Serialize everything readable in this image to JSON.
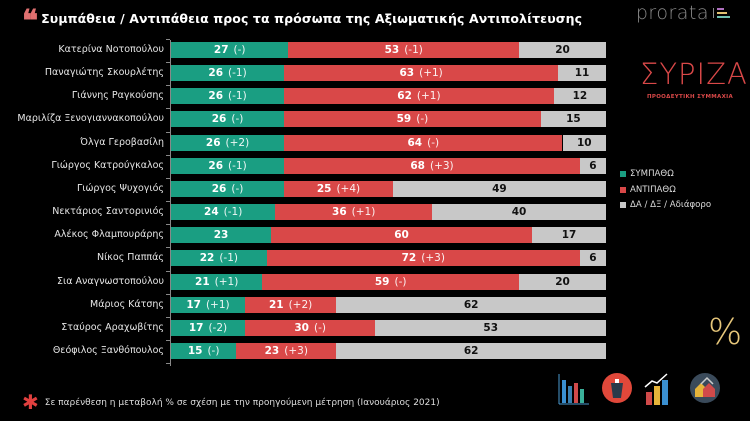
{
  "header": {
    "title": "Συμπάθεια / Αντιπάθεια προς τα πρόσωπα της Αξιωματικής Αντιπολίτευσης",
    "quote_icon": "quote-icon",
    "brand": "prorata",
    "party_name": "ΣΥΡΙΖΑ",
    "party_subtitle": "ΠΡΟΟΔΕΥΤΙΚΗ ΣΥΜΜΑΧΙΑ"
  },
  "colors": {
    "sympatho": "#1a9e82",
    "antipatho": "#d94848",
    "undecided": "#c8c8c8",
    "accent": "#e07070",
    "percent": "#e6c67a"
  },
  "chart_data": {
    "type": "bar",
    "stacked": true,
    "orientation": "horizontal",
    "title": "Συμπάθεια / Αντιπάθεια προς τα πρόσωπα της Αξιωματικής Αντιπολίτευσης",
    "xlabel": "",
    "ylabel": "",
    "xlim": [
      0,
      100
    ],
    "grid": false,
    "legend_position": "right",
    "categories": [
      "Κατερίνα Νοτοπούλου",
      "Παναγιώτης Σκουρλέτης",
      "Γιάννης Ραγκούσης",
      "Μαριλίζα Ξενογιαννακοπούλου",
      "Όλγα Γεροβασίλη",
      "Γιώργος Κατρούγκαλος",
      "Γιώργος Ψυχογιός",
      "Νεκτάριος Σαντορινιός",
      "Αλέκος Φλαμπουράρης",
      "Νίκος Παππάς",
      "Σια Αναγνωστοπούλου",
      "Μάριος Κάτσης",
      "Σταύρος Αραχωβίτης",
      "Θεόφιλος Ξανθόπουλος"
    ],
    "series": [
      {
        "name": "ΣΥΜΠΑΘΩ",
        "values": [
          27,
          26,
          26,
          26,
          26,
          26,
          26,
          24,
          23,
          22,
          21,
          17,
          17,
          15
        ],
        "changes": [
          "(-)",
          "(-1)",
          "(-1)",
          "(-)",
          "(+2)",
          "(-1)",
          "(-)",
          "(-1)",
          "",
          "(-1)",
          "(+1)",
          "(+1)",
          "(-2)",
          "(-)"
        ]
      },
      {
        "name": "ΑΝΤΙΠΑΘΩ",
        "values": [
          53,
          63,
          62,
          59,
          64,
          68,
          25,
          36,
          60,
          72,
          59,
          21,
          30,
          23
        ],
        "changes": [
          "(-1)",
          "(+1)",
          "(+1)",
          "(-)",
          "(-)",
          "(+3)",
          "(+4)",
          "(+1)",
          "",
          "(+3)",
          "(-)",
          "(+2)",
          "(-)",
          "(+3)"
        ]
      },
      {
        "name": "ΔΑ / ΔΞ / Αδιάφορο",
        "values": [
          20,
          11,
          12,
          15,
          10,
          6,
          49,
          40,
          17,
          6,
          20,
          62,
          53,
          62
        ],
        "changes": [
          "",
          "",
          "",
          "",
          "",
          "",
          "",
          "",
          "",
          "",
          "",
          "",
          "",
          ""
        ]
      }
    ],
    "annotations": [
      "Σε παρένθεση η μεταβολή % σε σχέση με την προηγούμενη μέτρηση (Ιανουάριος 2021)"
    ]
  },
  "legend": [
    {
      "label": "ΣΥΜΠΑΘΩ",
      "color": "#1a9e82"
    },
    {
      "label": "ΑΝΤΙΠΑΘΩ",
      "color": "#d94848"
    },
    {
      "label": "ΔΑ / ΔΞ / Αδιάφορο",
      "color": "#c8c8c8"
    }
  ],
  "footnote": {
    "marker": "✱",
    "text": "Σε παρένθεση η μεταβολή % σε σχέση με την προηγούμενη μέτρηση (Ιανουάριος 2021)"
  },
  "decor": {
    "percent_symbol": "%",
    "icons": [
      "bar-chart-icon",
      "ballot-box-icon",
      "growth-chart-icon",
      "houses-icon"
    ]
  }
}
